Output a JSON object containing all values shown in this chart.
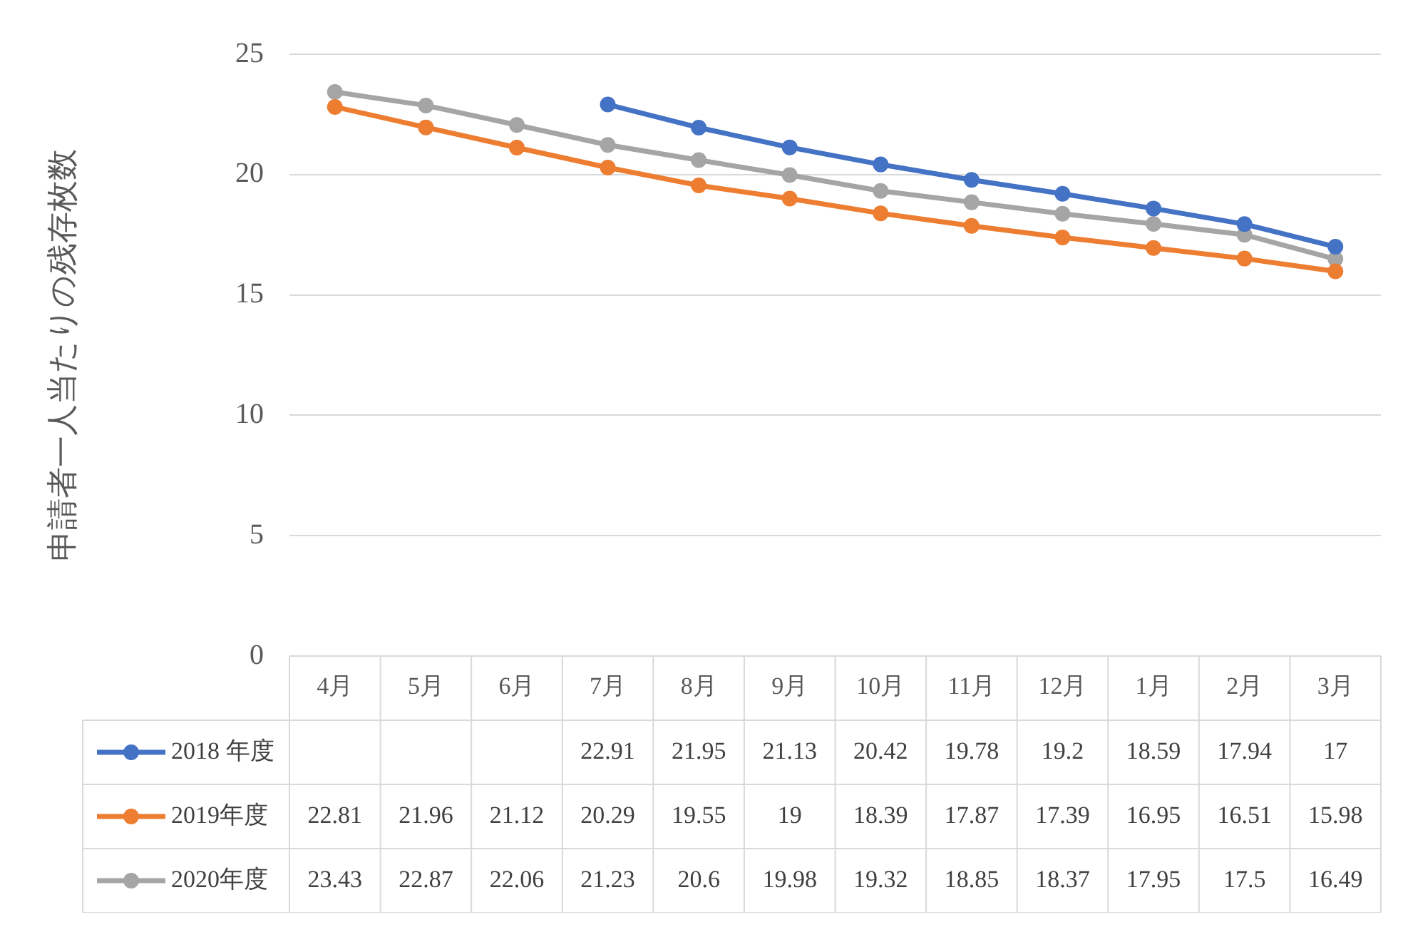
{
  "chart_data": {
    "type": "line",
    "ylabel": "申請者一人当たりの残存枚数",
    "categories": [
      "4月",
      "5月",
      "6月",
      "7月",
      "8月",
      "9月",
      "10月",
      "11月",
      "12月",
      "1月",
      "2月",
      "3月"
    ],
    "series": [
      {
        "name": "2018 年度",
        "color": "#4472c4",
        "values": [
          null,
          null,
          null,
          22.91,
          21.95,
          21.13,
          20.42,
          19.78,
          19.2,
          18.59,
          17.94,
          17
        ]
      },
      {
        "name": "2019年度",
        "color": "#ed7d31",
        "values": [
          22.81,
          21.96,
          21.12,
          20.29,
          19.55,
          19,
          18.39,
          17.87,
          17.39,
          16.95,
          16.51,
          15.98
        ]
      },
      {
        "name": "2020年度",
        "color": "#a5a5a5",
        "values": [
          23.43,
          22.87,
          22.06,
          21.23,
          20.6,
          19.98,
          19.32,
          18.85,
          18.37,
          17.95,
          17.5,
          16.49
        ]
      }
    ],
    "ylim": [
      0,
      25
    ],
    "yticks": [
      0,
      5,
      10,
      15,
      20,
      25
    ],
    "grid": "y",
    "marker": "circle",
    "line_style": "solid",
    "legend": "bottom",
    "data_labels": true
  }
}
